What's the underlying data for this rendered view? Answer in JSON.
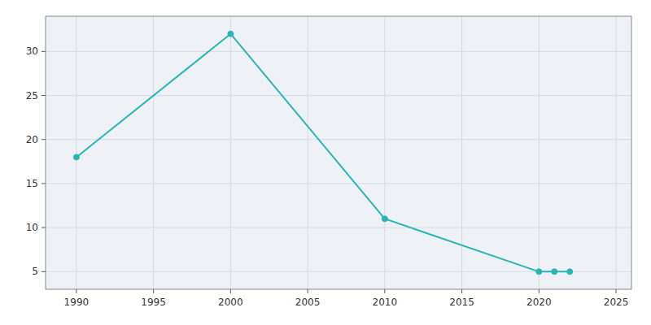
{
  "chart_data": {
    "type": "line",
    "x": [
      1990,
      2000,
      2010,
      2020,
      2021,
      2022
    ],
    "values": [
      18,
      32,
      11,
      5,
      5,
      5
    ],
    "color": "#2ab5b5",
    "marker": "circle",
    "xlim": [
      1988,
      2026
    ],
    "ylim": [
      3,
      34
    ],
    "xticks": [
      1990,
      1995,
      2000,
      2005,
      2010,
      2015,
      2020,
      2025
    ],
    "yticks": [
      5,
      10,
      15,
      20,
      25,
      30
    ],
    "grid": true
  }
}
